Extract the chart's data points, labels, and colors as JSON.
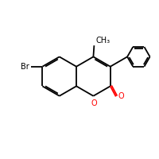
{
  "bg_color": "#ffffff",
  "bond_color": "#000000",
  "o_color": "#ff0000",
  "br_label": "Br",
  "o_label": "O",
  "ch3_label": "CH₃",
  "bond_lw": 1.3,
  "figsize": [
    2.0,
    2.0
  ],
  "dpi": 100,
  "xlim": [
    0,
    10
  ],
  "ylim": [
    0,
    10
  ]
}
